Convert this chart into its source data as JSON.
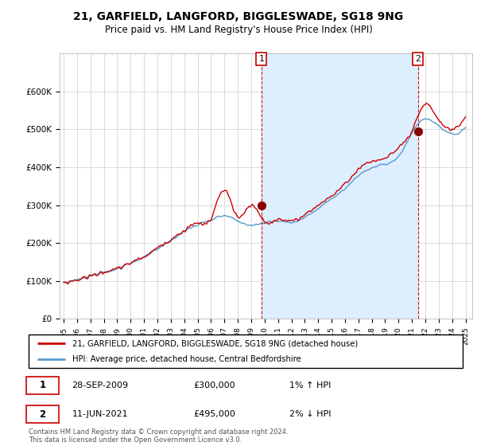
{
  "title": "21, GARFIELD, LANGFORD, BIGGLESWADE, SG18 9NG",
  "subtitle": "Price paid vs. HM Land Registry's House Price Index (HPI)",
  "legend_line1": "21, GARFIELD, LANGFORD, BIGGLESWADE, SG18 9NG (detached house)",
  "legend_line2": "HPI: Average price, detached house, Central Bedfordshire",
  "annotation1_label": "1",
  "annotation1_date": "28-SEP-2009",
  "annotation1_price": "£300,000",
  "annotation1_hpi": "1% ↑ HPI",
  "annotation1_year": 2009.75,
  "annotation1_value": 300000,
  "annotation2_label": "2",
  "annotation2_date": "11-JUN-2021",
  "annotation2_price": "£495,000",
  "annotation2_hpi": "2% ↓ HPI",
  "annotation2_year": 2021.44,
  "annotation2_value": 495000,
  "footer": "Contains HM Land Registry data © Crown copyright and database right 2024.\nThis data is licensed under the Open Government Licence v3.0.",
  "ylim": [
    0,
    700000
  ],
  "xlim_start": 1994.7,
  "xlim_end": 2025.5,
  "hpi_color": "#5599cc",
  "price_color": "#cc0000",
  "shade_color": "#ddeeff",
  "background_color": "#ffffff",
  "grid_color": "#cccccc",
  "annotation_line_color": "#cc0000",
  "yticks": [
    0,
    100000,
    200000,
    300000,
    400000,
    500000,
    600000
  ],
  "ylabels": [
    "£0",
    "£100K",
    "£200K",
    "£300K",
    "£400K",
    "£500K",
    "£600K"
  ]
}
